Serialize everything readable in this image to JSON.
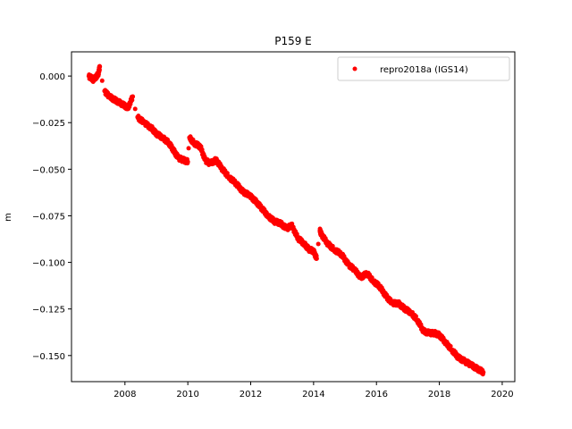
{
  "chart_data": {
    "type": "scatter",
    "title": "P159 E",
    "xlabel": "",
    "ylabel": "m",
    "xlim": [
      2006.3,
      2020.4
    ],
    "ylim": [
      -0.164,
      0.013
    ],
    "x_ticks": [
      2008,
      2010,
      2012,
      2014,
      2016,
      2018,
      2020
    ],
    "x_tick_labels": [
      "2008",
      "2010",
      "2012",
      "2014",
      "2016",
      "2018",
      "2020"
    ],
    "y_ticks": [
      0.0,
      -0.025,
      -0.05,
      -0.075,
      -0.1,
      -0.125,
      -0.15
    ],
    "y_tick_labels": [
      "0.000",
      "−0.025",
      "−0.050",
      "−0.075",
      "−0.100",
      "−0.125",
      "−0.150"
    ],
    "grid": false,
    "legend_position": "top-right",
    "series": [
      {
        "name": "repro2018a (IGS14)",
        "color": "#ff0000",
        "marker": "circle",
        "x": [
          2006.85,
          2007.0,
          2007.15,
          2007.2,
          2007.35,
          2007.5,
          2007.7,
          2007.9,
          2008.1,
          2008.25,
          2008.4,
          2008.6,
          2008.85,
          2009.0,
          2009.2,
          2009.4,
          2009.55,
          2009.7,
          2009.85,
          2010.0,
          2010.05,
          2010.2,
          2010.4,
          2010.55,
          2010.7,
          2010.9,
          2011.1,
          2011.3,
          2011.55,
          2011.75,
          2011.95,
          2012.15,
          2012.35,
          2012.55,
          2012.75,
          2012.95,
          2013.15,
          2013.3,
          2013.5,
          2013.7,
          2013.85,
          2014.0,
          2014.1,
          2014.2,
          2014.25,
          2014.45,
          2014.65,
          2014.9,
          2015.1,
          2015.3,
          2015.5,
          2015.7,
          2015.9,
          2016.1,
          2016.3,
          2016.5,
          2016.7,
          2016.9,
          2017.1,
          2017.3,
          2017.5,
          2017.7,
          2017.85,
          2018.0,
          2018.2,
          2018.4,
          2018.6,
          2018.8,
          2019.0,
          2019.2,
          2019.4
        ],
        "y": [
          0.0,
          -0.002,
          0.001,
          0.005,
          -0.008,
          -0.011,
          -0.013,
          -0.015,
          -0.017,
          -0.011,
          -0.022,
          -0.025,
          -0.028,
          -0.031,
          -0.033,
          -0.036,
          -0.04,
          -0.044,
          -0.045,
          -0.046,
          -0.033,
          -0.036,
          -0.038,
          -0.045,
          -0.047,
          -0.045,
          -0.05,
          -0.054,
          -0.058,
          -0.062,
          -0.064,
          -0.067,
          -0.071,
          -0.075,
          -0.078,
          -0.079,
          -0.082,
          -0.08,
          -0.087,
          -0.09,
          -0.093,
          -0.094,
          -0.098,
          -0.083,
          -0.085,
          -0.09,
          -0.093,
          -0.096,
          -0.101,
          -0.104,
          -0.108,
          -0.106,
          -0.11,
          -0.113,
          -0.118,
          -0.122,
          -0.122,
          -0.125,
          -0.127,
          -0.131,
          -0.137,
          -0.138,
          -0.138,
          -0.139,
          -0.143,
          -0.147,
          -0.151,
          -0.153,
          -0.155,
          -0.157,
          -0.159
        ]
      }
    ]
  }
}
